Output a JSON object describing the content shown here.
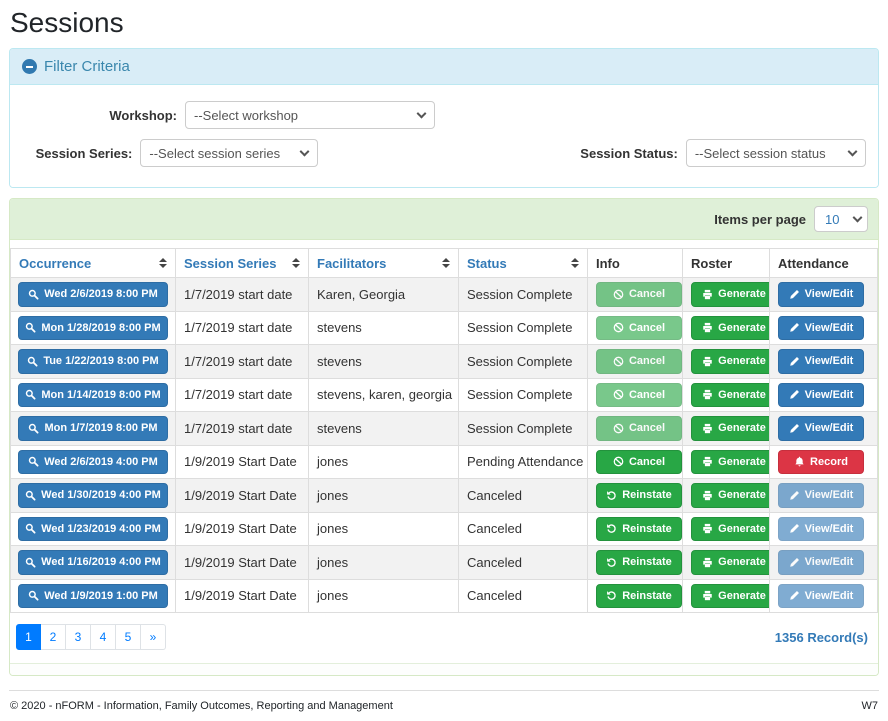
{
  "page": {
    "title": "Sessions"
  },
  "colors": {
    "primary_blue": "#337ab7",
    "success_green": "#28a745",
    "danger_red": "#dc3545",
    "filter_header_bg": "#d9edf7",
    "filter_header_text": "#3a87ad",
    "table_band_bg": "#dff0d8",
    "pagination_active": "#007bff",
    "row_stripe": "#f2f2f2"
  },
  "icons": {
    "filter_collapse": "minus-circle-icon",
    "dropdown": "chevron-down-icon",
    "sort": "sort-arrows-icon",
    "occurrence": "search-icon"
  },
  "filter": {
    "title": "Filter Criteria",
    "fields": [
      {
        "label": "Workshop:",
        "value": "--Select workshop"
      },
      {
        "label": "Session Series:",
        "value": "--Select session series"
      },
      {
        "label": "Session Status:",
        "value": "--Select session status"
      }
    ]
  },
  "table": {
    "items_per_page_label": "Items per page",
    "items_per_page_value": "10",
    "occurrence_icon": "search-icon",
    "columns": [
      {
        "label": "Occurrence",
        "sortable": true
      },
      {
        "label": "Session Series",
        "sortable": true
      },
      {
        "label": "Facilitators",
        "sortable": true
      },
      {
        "label": "Status",
        "sortable": true
      },
      {
        "label": "Info",
        "sortable": false
      },
      {
        "label": "Roster",
        "sortable": false
      },
      {
        "label": "Attendance",
        "sortable": false
      }
    ],
    "rows": [
      {
        "occurrence": "Wed 2/6/2019 8:00 PM",
        "session_series": "1/7/2019 start date",
        "facilitators": "Karen, Georgia",
        "status": "Session Complete",
        "info": {
          "label": "Cancel",
          "icon": "ban-icon",
          "style": "green",
          "disabled": true
        },
        "roster": {
          "label": "Generate",
          "icon": "printer-icon",
          "style": "green",
          "disabled": false
        },
        "attendance": {
          "label": "View/Edit",
          "icon": "pencil-icon",
          "style": "blue",
          "disabled": false
        }
      },
      {
        "occurrence": "Mon 1/28/2019 8:00 PM",
        "session_series": "1/7/2019 start date",
        "facilitators": "stevens",
        "status": "Session Complete",
        "info": {
          "label": "Cancel",
          "icon": "ban-icon",
          "style": "green",
          "disabled": true
        },
        "roster": {
          "label": "Generate",
          "icon": "printer-icon",
          "style": "green",
          "disabled": false
        },
        "attendance": {
          "label": "View/Edit",
          "icon": "pencil-icon",
          "style": "blue",
          "disabled": false
        }
      },
      {
        "occurrence": "Tue 1/22/2019 8:00 PM",
        "session_series": "1/7/2019 start date",
        "facilitators": "stevens",
        "status": "Session Complete",
        "info": {
          "label": "Cancel",
          "icon": "ban-icon",
          "style": "green",
          "disabled": true
        },
        "roster": {
          "label": "Generate",
          "icon": "printer-icon",
          "style": "green",
          "disabled": false
        },
        "attendance": {
          "label": "View/Edit",
          "icon": "pencil-icon",
          "style": "blue",
          "disabled": false
        }
      },
      {
        "occurrence": "Mon 1/14/2019 8:00 PM",
        "session_series": "1/7/2019 start date",
        "facilitators": "stevens, karen, georgia",
        "status": "Session Complete",
        "info": {
          "label": "Cancel",
          "icon": "ban-icon",
          "style": "green",
          "disabled": true
        },
        "roster": {
          "label": "Generate",
          "icon": "printer-icon",
          "style": "green",
          "disabled": false
        },
        "attendance": {
          "label": "View/Edit",
          "icon": "pencil-icon",
          "style": "blue",
          "disabled": false
        }
      },
      {
        "occurrence": "Mon 1/7/2019 8:00 PM",
        "session_series": "1/7/2019 start date",
        "facilitators": "stevens",
        "status": "Session Complete",
        "info": {
          "label": "Cancel",
          "icon": "ban-icon",
          "style": "green",
          "disabled": true
        },
        "roster": {
          "label": "Generate",
          "icon": "printer-icon",
          "style": "green",
          "disabled": false
        },
        "attendance": {
          "label": "View/Edit",
          "icon": "pencil-icon",
          "style": "blue",
          "disabled": false
        }
      },
      {
        "occurrence": "Wed 2/6/2019 4:00 PM",
        "session_series": "1/9/2019 Start Date",
        "facilitators": "jones",
        "status": "Pending Attendance",
        "info": {
          "label": "Cancel",
          "icon": "ban-icon",
          "style": "green",
          "disabled": false
        },
        "roster": {
          "label": "Generate",
          "icon": "printer-icon",
          "style": "green",
          "disabled": false
        },
        "attendance": {
          "label": "Record",
          "icon": "bell-icon",
          "style": "red",
          "disabled": false
        }
      },
      {
        "occurrence": "Wed 1/30/2019 4:00 PM",
        "session_series": "1/9/2019 Start Date",
        "facilitators": "jones",
        "status": "Canceled",
        "info": {
          "label": "Reinstate",
          "icon": "undo-icon",
          "style": "green",
          "disabled": false
        },
        "roster": {
          "label": "Generate",
          "icon": "printer-icon",
          "style": "green",
          "disabled": false
        },
        "attendance": {
          "label": "View/Edit",
          "icon": "pencil-icon",
          "style": "blue",
          "disabled": true
        }
      },
      {
        "occurrence": "Wed 1/23/2019 4:00 PM",
        "session_series": "1/9/2019 Start Date",
        "facilitators": "jones",
        "status": "Canceled",
        "info": {
          "label": "Reinstate",
          "icon": "undo-icon",
          "style": "green",
          "disabled": false
        },
        "roster": {
          "label": "Generate",
          "icon": "printer-icon",
          "style": "green",
          "disabled": false
        },
        "attendance": {
          "label": "View/Edit",
          "icon": "pencil-icon",
          "style": "blue",
          "disabled": true
        }
      },
      {
        "occurrence": "Wed 1/16/2019 4:00 PM",
        "session_series": "1/9/2019 Start Date",
        "facilitators": "jones",
        "status": "Canceled",
        "info": {
          "label": "Reinstate",
          "icon": "undo-icon",
          "style": "green",
          "disabled": false
        },
        "roster": {
          "label": "Generate",
          "icon": "printer-icon",
          "style": "green",
          "disabled": false
        },
        "attendance": {
          "label": "View/Edit",
          "icon": "pencil-icon",
          "style": "blue",
          "disabled": true
        }
      },
      {
        "occurrence": "Wed 1/9/2019 1:00 PM",
        "session_series": "1/9/2019 Start Date",
        "facilitators": "jones",
        "status": "Canceled",
        "info": {
          "label": "Reinstate",
          "icon": "undo-icon",
          "style": "green",
          "disabled": false
        },
        "roster": {
          "label": "Generate",
          "icon": "printer-icon",
          "style": "green",
          "disabled": false
        },
        "attendance": {
          "label": "View/Edit",
          "icon": "pencil-icon",
          "style": "blue",
          "disabled": true
        }
      }
    ],
    "record_count": "1356 Record(s)"
  },
  "pagination": {
    "pages": [
      "1",
      "2",
      "3",
      "4",
      "5"
    ],
    "active": "1",
    "next": "»"
  },
  "footer": {
    "copyright": "© 2020 - nFORM - Information, Family Outcomes, Reporting and Management",
    "version": "W7"
  }
}
